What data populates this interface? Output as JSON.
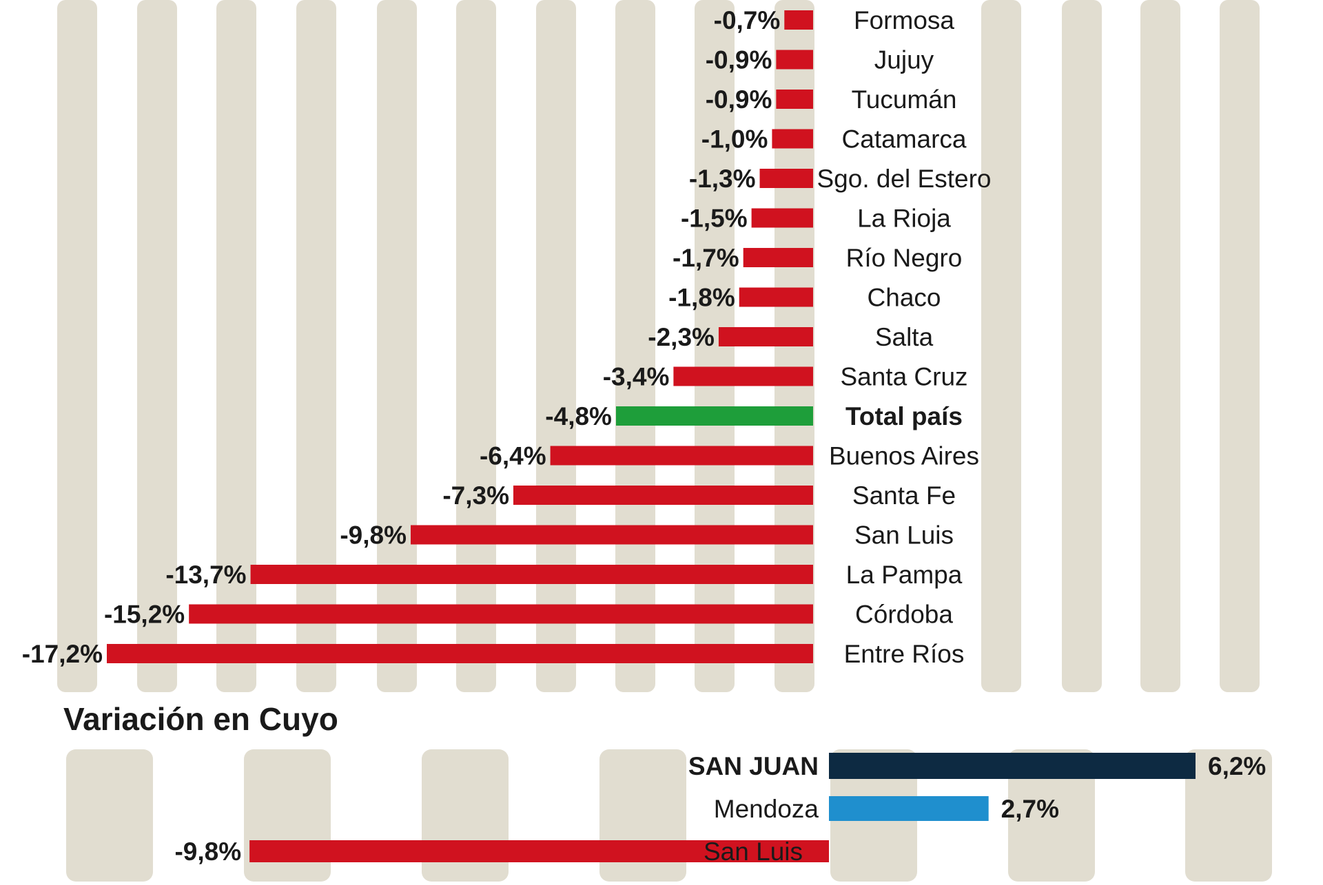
{
  "chart_data": [
    {
      "type": "bar",
      "orientation": "horizontal",
      "categories": [
        "Formosa",
        "Jujuy",
        "Tucumán",
        "Catamarca",
        "Sgo. del Estero",
        "La Rioja",
        "Río Negro",
        "Chaco",
        "Salta",
        "Santa Cruz",
        "Total país",
        "Buenos Aires",
        "Santa Fe",
        "San Luis",
        "La Pampa",
        "Córdoba",
        "Entre Ríos"
      ],
      "values": [
        -0.7,
        -0.9,
        -0.9,
        -1.0,
        -1.3,
        -1.5,
        -1.7,
        -1.8,
        -2.3,
        -3.4,
        -4.8,
        -6.4,
        -7.3,
        -9.8,
        -13.7,
        -15.2,
        -17.2
      ],
      "value_labels": [
        "-0,7%",
        "-0,9%",
        "-0,9%",
        "-1,0%",
        "-1,3%",
        "-1,5%",
        "-1,7%",
        "-1,8%",
        "-2,3%",
        "-3,4%",
        "-4,8%",
        "-6,4%",
        "-7,3%",
        "-9,8%",
        "-13,7%",
        "-15,2%",
        "-17,2%"
      ],
      "highlight_category": "Total país",
      "colors": {
        "negative": "#d0121f",
        "highlight": "#1e9e3a",
        "stripe": "#e1ddd0"
      }
    },
    {
      "type": "bar",
      "orientation": "horizontal",
      "title": "Variación en Cuyo",
      "categories": [
        "SAN JUAN",
        "Mendoza",
        "San Luis"
      ],
      "values": [
        6.2,
        2.7,
        -9.8
      ],
      "value_labels": [
        "6,2%",
        "2,7%",
        "-9,8%"
      ],
      "colors": [
        "#0d2a42",
        "#1f8fce",
        "#d0121f"
      ],
      "stripe_color": "#e1ddd0"
    }
  ]
}
